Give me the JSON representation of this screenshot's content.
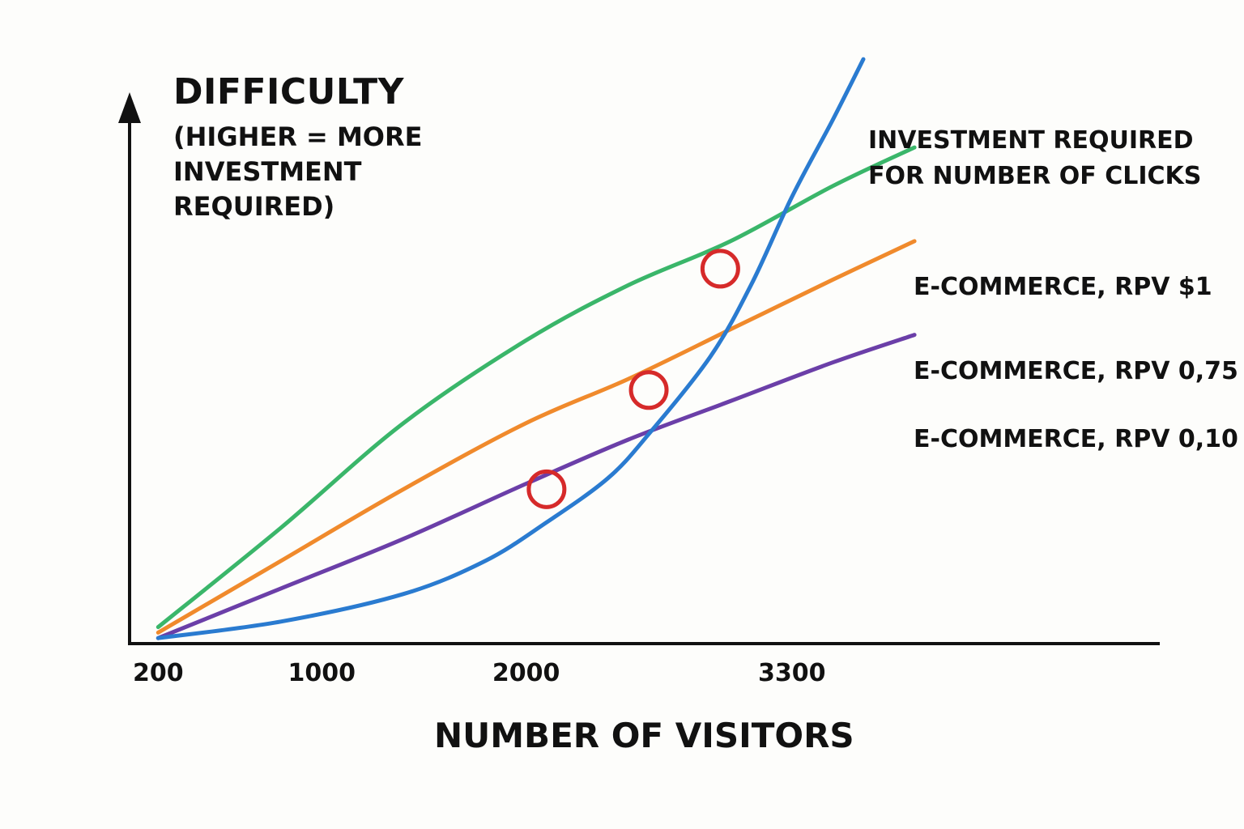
{
  "chart_data": {
    "type": "line",
    "ylabel": "DIFFICULTY",
    "ylabel_sub": "(HIGHER = MORE INVESTMENT REQUIRED)",
    "xlabel": "NUMBER OF VISITORS",
    "x_ticks": [
      "200",
      "1000",
      "2000",
      "3300"
    ],
    "x_tick_values": [
      200,
      1000,
      2000,
      3300
    ],
    "xlim": [
      60,
      5100
    ],
    "ylim": [
      0,
      100
    ],
    "grid": false,
    "legend_placement": "right, next to line ends",
    "series": [
      {
        "name": "INVESTMENT REQUIRED FOR NUMBER OF CLICKS",
        "color": "#2a7bd0",
        "x": [
          200,
          800,
          1400,
          1800,
          2100,
          2400,
          2600,
          2900,
          3100,
          3300,
          3500,
          3650
        ],
        "y": [
          1,
          4,
          9,
          15,
          22,
          30,
          38,
          52,
          65,
          81,
          95,
          106
        ]
      },
      {
        "name": "E-COMMERCE, RPV $1",
        "color": "#3ab66a",
        "x": [
          200,
          800,
          1400,
          2000,
          2500,
          3000,
          3500,
          3900
        ],
        "y": [
          3,
          21,
          40,
          55,
          65,
          73,
          83,
          90
        ]
      },
      {
        "name": "E-COMMERCE, RPV 0,75",
        "color": "#f08a2c",
        "x": [
          200,
          800,
          1400,
          2000,
          2500,
          3000,
          3500,
          3900
        ],
        "y": [
          2,
          15,
          28,
          40,
          48,
          57,
          66,
          73
        ]
      },
      {
        "name": "E-COMMERCE, RPV 0,10",
        "color": "#6b3fa8",
        "x": [
          200,
          800,
          1400,
          2000,
          2500,
          3000,
          3500,
          3900
        ],
        "y": [
          1,
          10,
          19,
          29,
          37,
          44,
          51,
          56
        ]
      }
    ],
    "markers": [
      {
        "x": 2100,
        "y": 28,
        "color": "#d62a2a"
      },
      {
        "x": 2600,
        "y": 46,
        "color": "#d62a2a"
      },
      {
        "x": 2950,
        "y": 68,
        "color": "#d62a2a"
      }
    ]
  }
}
